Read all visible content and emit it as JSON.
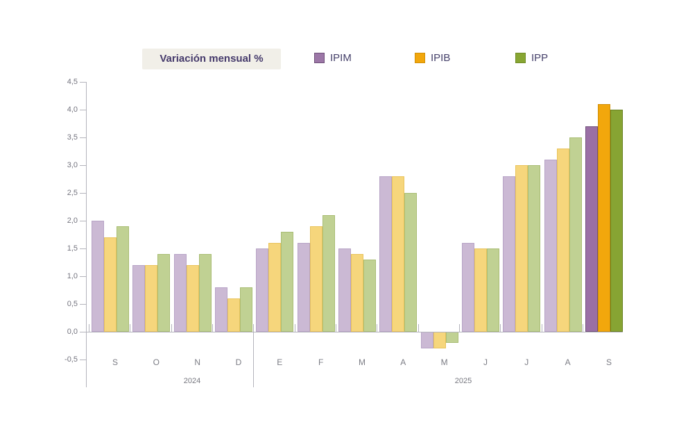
{
  "header": {
    "title": "Variación mensual %",
    "legend": [
      {
        "name": "IPIM",
        "color": "#9c77a7",
        "border": "#6e4f78"
      },
      {
        "name": "IPIB",
        "color": "#f2a70c",
        "border": "#d18f06"
      },
      {
        "name": "IPP",
        "color": "#88a633",
        "border": "#6f8c25"
      }
    ]
  },
  "chart_data": {
    "type": "bar",
    "title": "Variación mensual %",
    "categories": [
      "S",
      "O",
      "N",
      "D",
      "E",
      "F",
      "M",
      "A",
      "M",
      "J",
      "J",
      "A",
      "S"
    ],
    "year_groups": [
      {
        "label": "2024",
        "from": 0,
        "to": 3
      },
      {
        "label": "2025",
        "from": 4,
        "to": 12
      }
    ],
    "series": [
      {
        "name": "IPIM",
        "values": [
          2.0,
          1.2,
          1.4,
          0.8,
          1.5,
          1.6,
          1.5,
          2.8,
          -0.3,
          1.6,
          2.8,
          3.1,
          3.7
        ]
      },
      {
        "name": "IPIB",
        "values": [
          1.7,
          1.2,
          1.2,
          0.6,
          1.6,
          1.9,
          1.4,
          2.8,
          -0.3,
          1.5,
          3.0,
          3.3,
          4.1
        ]
      },
      {
        "name": "IPP",
        "values": [
          1.9,
          1.4,
          1.4,
          0.8,
          1.8,
          2.1,
          1.3,
          2.5,
          -0.2,
          1.5,
          3.0,
          3.5,
          4.0
        ]
      }
    ],
    "highlight_index": 12,
    "ylim": [
      -0.5,
      4.5
    ],
    "ytick_step": 0.5,
    "ytick_labels": [
      "4,5",
      "4,0",
      "3,5",
      "3,0",
      "2,5",
      "2,0",
      "1,5",
      "1,0",
      "0,5",
      "0,0",
      "-0,5"
    ],
    "legend_position": "top",
    "grid": false,
    "colors": {
      "series_strong": [
        "#9a6fa5",
        "#f2a70c",
        "#87a433"
      ],
      "series_strong_border": [
        "#71517c",
        "#cf8e09",
        "#67801f"
      ],
      "series_light": [
        "#cbb9d4",
        "#f6d67c",
        "#c0d193"
      ],
      "series_light_border": [
        "#b7a3c6",
        "#e9c35b",
        "#a9bd74"
      ],
      "axis": "#b3b3bb",
      "title_bg": "#f1efe8",
      "title_text": "#453a6b"
    }
  }
}
